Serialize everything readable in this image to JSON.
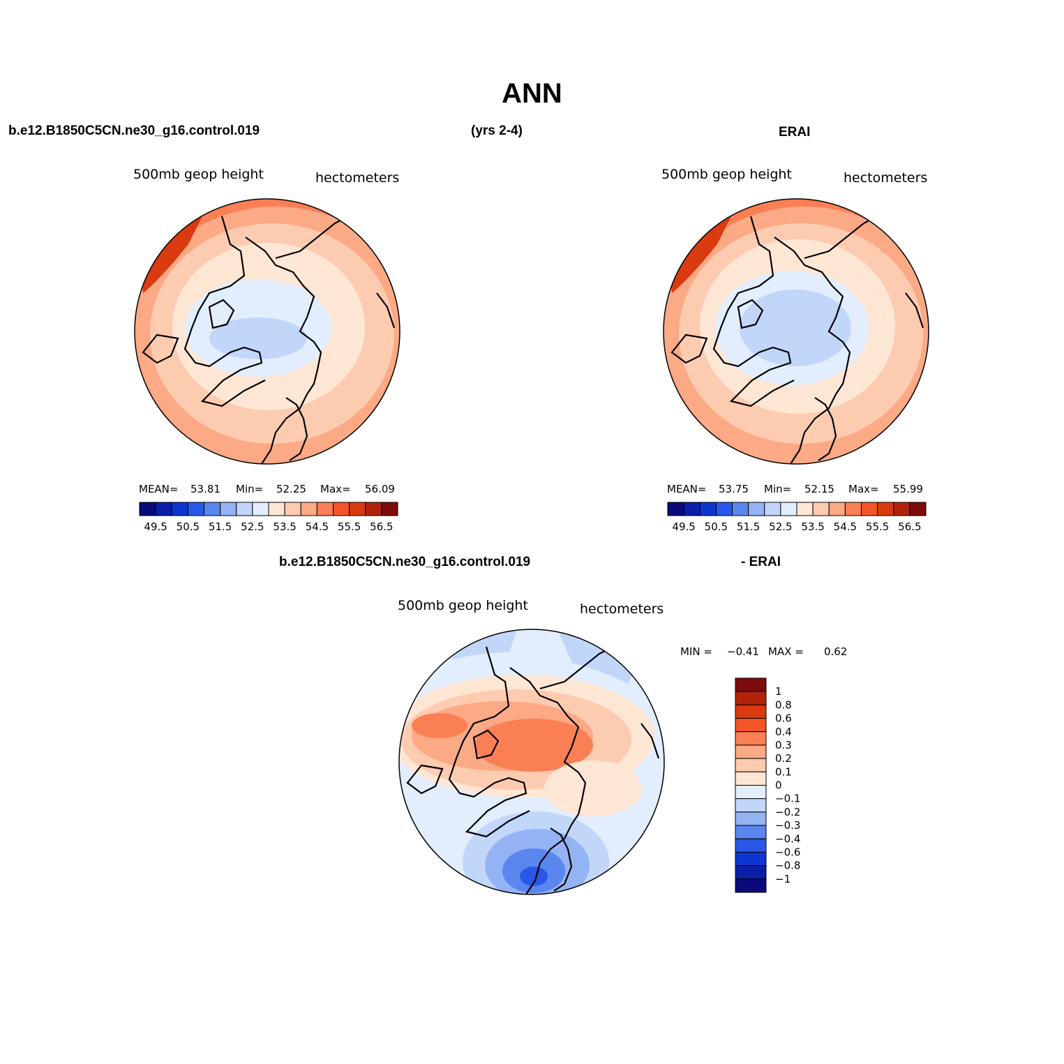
{
  "title": "ANN",
  "header": {
    "case_name": "b.e12.B1850C5CN.ne30_g16.control.019",
    "years": "(yrs 2-4)",
    "reference": "ERAI"
  },
  "panels": [
    {
      "variable": "500mb geop height",
      "units": "hectometers",
      "stats": {
        "mean_label": "MEAN=",
        "mean": "53.81",
        "min_label": "Min=",
        "min": "52.25",
        "max_label": "Max=",
        "max": "56.09"
      }
    },
    {
      "variable": "500mb geop height",
      "units": "hectometers",
      "stats": {
        "mean_label": "MEAN=",
        "mean": "53.75",
        "min_label": "Min=",
        "min": "52.15",
        "max_label": "Max=",
        "max": "55.99"
      }
    }
  ],
  "abs_colorbar": {
    "labels": [
      "49.5",
      "50.5",
      "51.5",
      "52.5",
      "53.5",
      "54.5",
      "55.5",
      "56.5"
    ],
    "colors": [
      "#0a0a7a",
      "#0a1fa8",
      "#0d35d1",
      "#2957e8",
      "#5a86f0",
      "#94b3f5",
      "#c2d6fa",
      "#e2edfd",
      "#fee6d4",
      "#fdcbb0",
      "#fca985",
      "#fb7f55",
      "#f45426",
      "#d93a10",
      "#b0230a",
      "#7d0c0c"
    ]
  },
  "diff_panel": {
    "title_left": "b.e12.B1850C5CN.ne30_g16.control.019",
    "title_right": "- ERAI",
    "variable": "500mb geop height",
    "units": "hectometers",
    "min_label": "MIN =",
    "min": "−0.41",
    "max_label": "MAX =",
    "max": "0.62"
  },
  "diff_colorbar": {
    "labels": [
      "1",
      "0.8",
      "0.6",
      "0.4",
      "0.3",
      "0.2",
      "0.1",
      "0",
      "−0.1",
      "−0.2",
      "−0.3",
      "−0.4",
      "−0.6",
      "−0.8",
      "−1"
    ],
    "colors": [
      "#7d0c0c",
      "#b0230a",
      "#d93a10",
      "#f45426",
      "#fb7f55",
      "#fca985",
      "#fdcbb0",
      "#fee6d4",
      "#e2edfd",
      "#c2d6fa",
      "#94b3f5",
      "#5a86f0",
      "#2957e8",
      "#0d35d1",
      "#0a1fa8",
      "#0a0a7a"
    ]
  },
  "map_data": {
    "projection": "polar stereographic (north pole)",
    "model_field": "model 500mb geopotential height, hectometers",
    "reference_field": "ERAI 500mb geopotential height, hectometers",
    "difference_field": "model minus ERAI, hectometers"
  }
}
